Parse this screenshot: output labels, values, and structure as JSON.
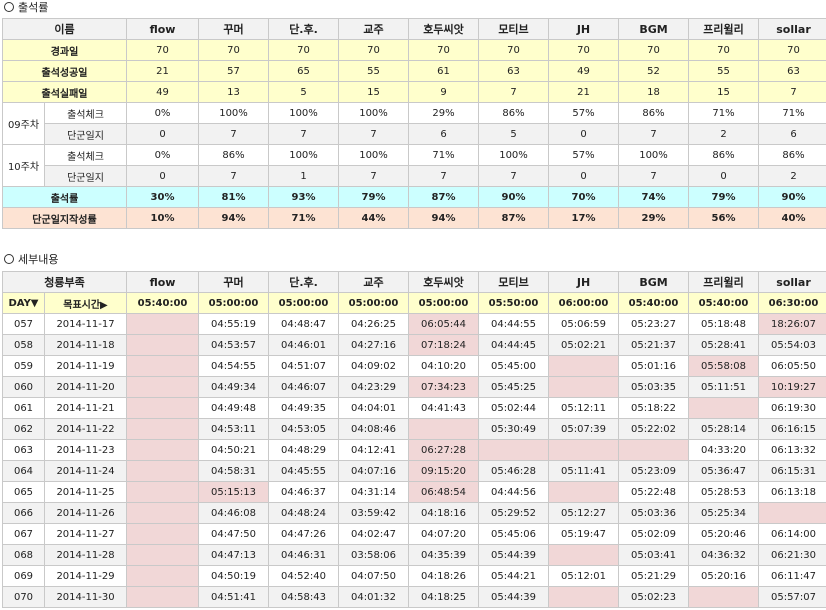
{
  "attendance": {
    "section_title": "출석률",
    "name_header": "이름",
    "members": [
      "flow",
      "꾸머",
      "단.후.",
      "교주",
      "호두씨앗",
      "모티브",
      "JH",
      "BGM",
      "프리윌리",
      "sollar"
    ],
    "rows": [
      {
        "label": "경과일",
        "values": [
          "70",
          "70",
          "70",
          "70",
          "70",
          "70",
          "70",
          "70",
          "70",
          "70"
        ]
      },
      {
        "label": "출석성공일",
        "values": [
          "21",
          "57",
          "65",
          "55",
          "61",
          "63",
          "49",
          "52",
          "55",
          "63"
        ]
      },
      {
        "label": "출석실패일",
        "values": [
          "49",
          "13",
          "5",
          "15",
          "9",
          "7",
          "21",
          "18",
          "15",
          "7"
        ]
      }
    ],
    "weeks": [
      {
        "label": "09주차",
        "rows": [
          {
            "label": "출석체크",
            "values": [
              "0%",
              "100%",
              "100%",
              "100%",
              "29%",
              "86%",
              "57%",
              "86%",
              "71%",
              "71%"
            ]
          },
          {
            "label": "단군일지",
            "values": [
              "0",
              "7",
              "7",
              "7",
              "6",
              "5",
              "0",
              "7",
              "2",
              "6"
            ]
          }
        ]
      },
      {
        "label": "10주차",
        "rows": [
          {
            "label": "출석체크",
            "values": [
              "0%",
              "86%",
              "100%",
              "100%",
              "71%",
              "100%",
              "57%",
              "100%",
              "86%",
              "86%"
            ]
          },
          {
            "label": "단군일지",
            "values": [
              "0",
              "7",
              "1",
              "7",
              "7",
              "7",
              "0",
              "7",
              "0",
              "2"
            ]
          }
        ]
      }
    ],
    "rate": {
      "label": "출석률",
      "values": [
        "30%",
        "81%",
        "93%",
        "79%",
        "87%",
        "90%",
        "70%",
        "74%",
        "79%",
        "90%"
      ]
    },
    "journal_rate": {
      "label": "단군일지작성률",
      "values": [
        "10%",
        "94%",
        "71%",
        "44%",
        "94%",
        "87%",
        "17%",
        "29%",
        "56%",
        "40%"
      ]
    }
  },
  "details": {
    "section_title": "세부내용",
    "team_header": "청룡부족",
    "day_label": "DAY▼",
    "target_label": "목표시간▶",
    "targets": [
      "05:40:00",
      "05:00:00",
      "05:00:00",
      "05:00:00",
      "05:00:00",
      "05:50:00",
      "06:00:00",
      "05:40:00",
      "05:40:00",
      "06:30:00"
    ],
    "rows": [
      {
        "day": "057",
        "date": "2014-11-17",
        "times": [
          "",
          "04:55:19",
          "04:48:47",
          "04:26:25",
          "06:05:44",
          "04:44:55",
          "05:06:59",
          "05:23:27",
          "05:18:48",
          "18:26:07"
        ]
      },
      {
        "day": "058",
        "date": "2014-11-18",
        "times": [
          "",
          "04:53:57",
          "04:46:01",
          "04:27:16",
          "07:18:24",
          "04:44:45",
          "05:02:21",
          "05:21:37",
          "05:28:41",
          "05:54:03"
        ]
      },
      {
        "day": "059",
        "date": "2014-11-19",
        "times": [
          "",
          "04:54:55",
          "04:51:07",
          "04:09:02",
          "04:10:20",
          "05:45:00",
          "",
          "05:01:16",
          "05:58:08",
          "06:05:50"
        ]
      },
      {
        "day": "060",
        "date": "2014-11-20",
        "times": [
          "",
          "04:49:34",
          "04:46:07",
          "04:23:29",
          "07:34:23",
          "05:45:25",
          "",
          "05:03:35",
          "05:11:51",
          "10:19:27"
        ]
      },
      {
        "day": "061",
        "date": "2014-11-21",
        "times": [
          "",
          "04:49:48",
          "04:49:35",
          "04:04:01",
          "04:41:43",
          "05:02:44",
          "05:12:11",
          "05:18:22",
          "",
          "06:19:30"
        ]
      },
      {
        "day": "062",
        "date": "2014-11-22",
        "times": [
          "",
          "04:53:11",
          "04:53:05",
          "04:08:46",
          "",
          "05:30:49",
          "05:07:39",
          "05:22:02",
          "05:28:14",
          "06:16:15"
        ]
      },
      {
        "day": "063",
        "date": "2014-11-23",
        "times": [
          "",
          "04:50:21",
          "04:48:29",
          "04:12:41",
          "06:27:28",
          "",
          "",
          "",
          "04:33:20",
          "06:13:32"
        ]
      },
      {
        "day": "064",
        "date": "2014-11-24",
        "times": [
          "",
          "04:58:31",
          "04:45:55",
          "04:07:16",
          "09:15:20",
          "05:46:28",
          "05:11:41",
          "05:23:09",
          "05:36:47",
          "06:15:31"
        ]
      },
      {
        "day": "065",
        "date": "2014-11-25",
        "times": [
          "",
          "05:15:13",
          "04:46:37",
          "04:31:14",
          "06:48:54",
          "04:44:56",
          "",
          "05:22:48",
          "05:28:53",
          "06:13:18"
        ]
      },
      {
        "day": "066",
        "date": "2014-11-26",
        "times": [
          "",
          "04:46:08",
          "04:48:24",
          "03:59:42",
          "04:18:16",
          "05:29:52",
          "05:12:27",
          "05:03:36",
          "05:25:34",
          ""
        ]
      },
      {
        "day": "067",
        "date": "2014-11-27",
        "times": [
          "",
          "04:47:50",
          "04:47:26",
          "04:02:47",
          "04:07:20",
          "05:45:06",
          "05:19:47",
          "05:02:09",
          "05:20:46",
          "06:14:00"
        ]
      },
      {
        "day": "068",
        "date": "2014-11-28",
        "times": [
          "",
          "04:47:13",
          "04:46:31",
          "03:58:06",
          "04:35:39",
          "05:44:39",
          "",
          "05:03:41",
          "04:36:32",
          "06:21:30"
        ]
      },
      {
        "day": "069",
        "date": "2014-11-29",
        "times": [
          "",
          "04:50:19",
          "04:52:40",
          "04:07:50",
          "04:18:26",
          "05:44:21",
          "05:12:01",
          "05:21:29",
          "05:20:16",
          "06:11:47"
        ]
      },
      {
        "day": "070",
        "date": "2014-11-30",
        "times": [
          "",
          "04:51:41",
          "04:58:43",
          "04:01:32",
          "04:18:25",
          "05:44:39",
          "",
          "05:02:23",
          "",
          "05:57:07"
        ]
      }
    ]
  }
}
